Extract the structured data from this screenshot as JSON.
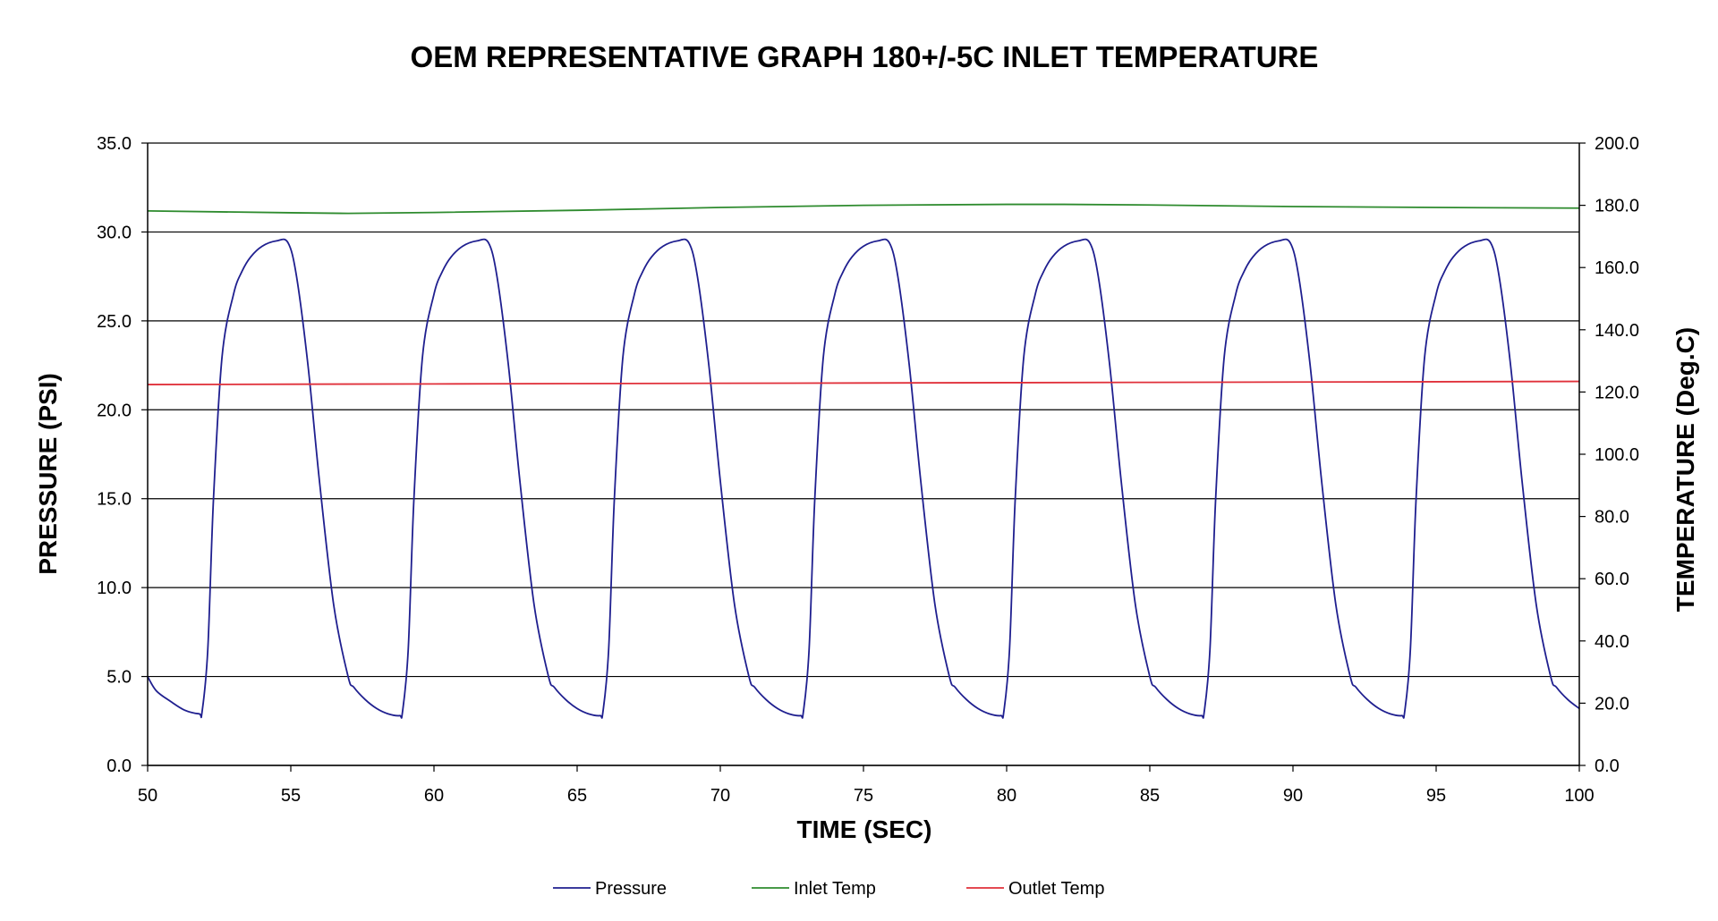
{
  "chart_data": {
    "type": "line",
    "title": "OEM REPRESENTATIVE GRAPH 180+/-5C INLET TEMPERATURE",
    "xlabel": "TIME (SEC)",
    "ylabel": "PRESSURE (PSI)",
    "y2label": "TEMPERATURE (Deg.C)",
    "xlim": [
      50,
      100
    ],
    "ylim": [
      0,
      35
    ],
    "y2lim": [
      0,
      200
    ],
    "x_ticks": [
      "50",
      "55",
      "60",
      "65",
      "70",
      "75",
      "80",
      "85",
      "90",
      "95",
      "100"
    ],
    "y_ticks": [
      "0.0",
      "5.0",
      "10.0",
      "15.0",
      "20.0",
      "25.0",
      "30.0",
      "35.0"
    ],
    "y2_ticks": [
      "0.0",
      "20.0",
      "40.0",
      "60.0",
      "80.0",
      "100.0",
      "120.0",
      "140.0",
      "160.0",
      "180.0",
      "200.0"
    ],
    "horizontal_grid": true,
    "legend_position": "bottom",
    "series": [
      {
        "name": "Pressure",
        "axis": "left",
        "color": "#1f1f8f",
        "x": [
          50,
          50.3,
          50.8,
          51.3,
          51.8,
          51.9,
          52.1,
          52.3,
          52.6,
          53.0,
          53.3,
          53.6,
          54.0,
          54.5,
          54.9,
          55.2,
          55.6,
          56.0,
          56.5,
          57.0,
          57.2,
          57.6,
          58.0,
          58.4,
          58.8,
          58.9,
          59.1,
          59.3,
          59.6,
          60.0,
          60.3,
          60.6,
          61.0,
          61.5,
          61.9,
          62.2,
          62.6,
          63.0,
          63.5,
          64.0,
          64.2,
          64.6,
          65.0,
          65.4,
          65.8,
          65.9,
          66.1,
          66.3,
          66.6,
          67.0,
          67.3,
          67.6,
          68.0,
          68.5,
          68.9,
          69.2,
          69.6,
          70.0,
          70.5,
          71.0,
          71.2,
          71.6,
          72.0,
          72.4,
          72.8,
          72.9,
          73.1,
          73.3,
          73.6,
          74.0,
          74.3,
          74.6,
          75.0,
          75.5,
          75.9,
          76.2,
          76.6,
          77.0,
          77.5,
          78.0,
          78.2,
          78.6,
          79.0,
          79.4,
          79.8,
          79.9,
          80.1,
          80.3,
          80.6,
          81.0,
          81.3,
          81.6,
          82.0,
          82.5,
          82.9,
          83.2,
          83.6,
          84.0,
          84.5,
          85.0,
          85.2,
          85.6,
          86.0,
          86.4,
          86.8,
          86.9,
          87.1,
          87.3,
          87.6,
          88.0,
          88.3,
          88.6,
          89.0,
          89.5,
          89.9,
          90.2,
          90.6,
          91.0,
          91.5,
          92.0,
          92.2,
          92.6,
          93.0,
          93.4,
          93.8,
          93.9,
          94.1,
          94.3,
          94.6,
          95.0,
          95.3,
          95.6,
          96.0,
          96.5,
          96.9,
          97.2,
          97.6,
          98.0,
          98.5,
          99.0,
          99.2,
          99.6,
          100.0
        ],
        "y": [
          5.0,
          4.2,
          3.6,
          3.1,
          2.9,
          3.0,
          6.5,
          15.0,
          23.0,
          26.5,
          27.8,
          28.6,
          29.2,
          29.5,
          29.4,
          27.5,
          22.5,
          16.0,
          9.0,
          5.0,
          4.4,
          3.7,
          3.2,
          2.9,
          2.8,
          3.0,
          6.5,
          15.0,
          23.0,
          26.5,
          27.8,
          28.6,
          29.2,
          29.5,
          29.4,
          27.5,
          22.5,
          16.0,
          9.0,
          5.0,
          4.4,
          3.7,
          3.2,
          2.9,
          2.8,
          3.0,
          6.5,
          15.0,
          23.0,
          26.5,
          27.8,
          28.6,
          29.2,
          29.5,
          29.4,
          27.5,
          22.5,
          16.0,
          9.0,
          5.0,
          4.4,
          3.7,
          3.2,
          2.9,
          2.8,
          3.0,
          6.5,
          15.0,
          23.0,
          26.5,
          27.8,
          28.6,
          29.2,
          29.5,
          29.4,
          27.5,
          22.5,
          16.0,
          9.0,
          5.0,
          4.4,
          3.7,
          3.2,
          2.9,
          2.8,
          3.0,
          6.5,
          15.0,
          23.0,
          26.5,
          27.8,
          28.6,
          29.2,
          29.5,
          29.4,
          27.5,
          22.5,
          16.0,
          9.0,
          5.0,
          4.4,
          3.7,
          3.2,
          2.9,
          2.8,
          3.0,
          6.5,
          15.0,
          23.0,
          26.5,
          27.8,
          28.6,
          29.2,
          29.5,
          29.4,
          27.5,
          22.5,
          16.0,
          9.0,
          5.0,
          4.4,
          3.7,
          3.2,
          2.9,
          2.8,
          3.0,
          6.5,
          15.0,
          23.0,
          26.5,
          27.8,
          28.6,
          29.2,
          29.5,
          29.4,
          27.5,
          22.5,
          16.0,
          9.0,
          5.0,
          4.4,
          3.7,
          3.2
        ]
      },
      {
        "name": "Inlet Temp",
        "axis": "right",
        "color": "#2e8b2e",
        "x": [
          50,
          55,
          57,
          60,
          65,
          70,
          75,
          80,
          82,
          85,
          90,
          95,
          100
        ],
        "y": [
          178.2,
          177.6,
          177.4,
          177.7,
          178.4,
          179.3,
          180.0,
          180.3,
          180.3,
          180.1,
          179.6,
          179.3,
          179.1
        ]
      },
      {
        "name": "Outlet Temp",
        "axis": "right",
        "color": "#e0303a",
        "x": [
          50,
          55,
          60,
          65,
          70,
          75,
          80,
          85,
          90,
          95,
          100
        ],
        "y": [
          122.4,
          122.5,
          122.6,
          122.7,
          122.8,
          122.9,
          123.0,
          123.1,
          123.2,
          123.3,
          123.4
        ]
      }
    ]
  }
}
